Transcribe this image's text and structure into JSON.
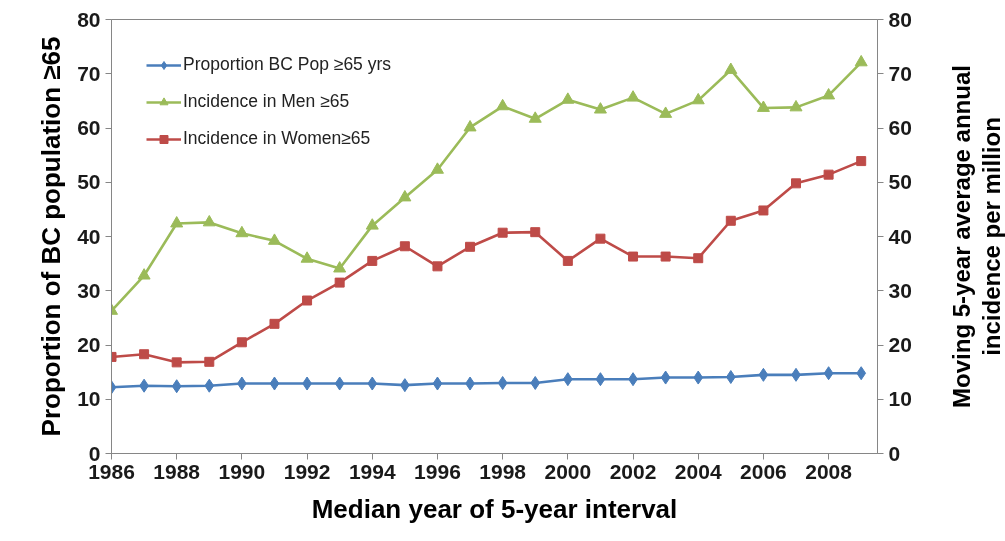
{
  "chart_data": {
    "type": "line",
    "xlabel": "Median year of 5-year interval",
    "ylabel": "Proportion of BC population ≥65",
    "y2label": "Moving 5-year average annual\nincidence per million",
    "x": [
      1986,
      1987,
      1988,
      1989,
      1990,
      1991,
      1992,
      1993,
      1994,
      1995,
      1996,
      1997,
      1998,
      1999,
      2000,
      2001,
      2002,
      2003,
      2004,
      2005,
      2006,
      2007,
      2008,
      2009
    ],
    "xlim": [
      1986,
      2009.5
    ],
    "xticks": [
      1986,
      1988,
      1990,
      1992,
      1994,
      1996,
      1998,
      2000,
      2002,
      2004,
      2006,
      2008
    ],
    "ylim": [
      0,
      80
    ],
    "yticks": [
      0,
      10,
      20,
      30,
      40,
      50,
      60,
      70,
      80
    ],
    "y2lim": [
      0,
      80
    ],
    "y2ticks": [
      0,
      10,
      20,
      30,
      40,
      50,
      60,
      70,
      80
    ],
    "grid": false,
    "legend": "top left",
    "line_style": "solid",
    "series": [
      {
        "name": "Proportion BC Pop ≥65 yrs",
        "color": "#4a7ebb",
        "marker": "diamond",
        "values": [
          12.2,
          12.5,
          12.4,
          12.5,
          12.9,
          12.9,
          12.9,
          12.9,
          12.9,
          12.6,
          12.9,
          12.9,
          13.0,
          13.0,
          13.7,
          13.7,
          13.7,
          14.0,
          14.0,
          14.1,
          14.5,
          14.5,
          14.8,
          14.8
        ]
      },
      {
        "name": "Incidence in Men ≥65",
        "color": "#9bbb59",
        "marker": "triangle",
        "values": [
          26.3,
          32.8,
          42.4,
          42.6,
          40.6,
          39.2,
          35.9,
          34.1,
          42.0,
          47.2,
          52.3,
          60.1,
          64.0,
          61.7,
          65.2,
          63.4,
          65.6,
          62.6,
          65.1,
          70.7,
          63.7,
          63.8,
          66.0,
          72.1
        ]
      },
      {
        "name": "Incidence in Women≥65",
        "color": "#be4b48",
        "marker": "square",
        "values": [
          17.8,
          18.3,
          16.8,
          16.9,
          20.5,
          23.9,
          28.2,
          31.5,
          35.5,
          38.2,
          34.5,
          38.1,
          40.7,
          40.8,
          35.5,
          39.6,
          36.3,
          36.3,
          36.0,
          42.9,
          44.8,
          49.8,
          51.4,
          53.9
        ]
      }
    ]
  }
}
